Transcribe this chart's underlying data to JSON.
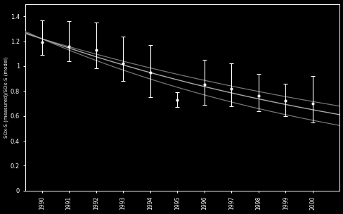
{
  "years": [
    1990,
    1991,
    1992,
    1993,
    1994,
    1995,
    1996,
    1997,
    1998,
    1999,
    2000
  ],
  "ratios": [
    1.19,
    1.16,
    1.13,
    1.02,
    0.95,
    0.73,
    0.85,
    0.82,
    0.76,
    0.72,
    0.7
  ],
  "yerr_lo": [
    0.1,
    0.12,
    0.15,
    0.14,
    0.2,
    0.06,
    0.16,
    0.14,
    0.12,
    0.12,
    0.15
  ],
  "yerr_hi": [
    0.18,
    0.2,
    0.22,
    0.22,
    0.22,
    0.06,
    0.2,
    0.2,
    0.18,
    0.14,
    0.22
  ],
  "ylabel": "SOx-S (measured)/SOx-S (model)",
  "xlim": [
    1989.4,
    2001.0
  ],
  "ylim": [
    0,
    1.5
  ],
  "yticks": [
    0,
    0.2,
    0.4,
    0.6,
    0.8,
    1.0,
    1.2,
    1.4
  ],
  "ytick_labels": [
    "0",
    "0.2",
    "0.4",
    "0.6",
    "0.8",
    "1",
    "1.2",
    "1.4"
  ],
  "xtick_labels": [
    "1990",
    "1991",
    "1992",
    "1993",
    "1994",
    "1995",
    "1996",
    "1997",
    "1998",
    "1999",
    "2000"
  ],
  "background_color": "#000000",
  "text_color": "#ffffff",
  "data_color": "#ffffff",
  "fit_color": "#aaaaaa",
  "fit_band_color": "#777777",
  "half_life": 11,
  "half_life_err": 2,
  "t0": 1990,
  "A0": 1.22
}
